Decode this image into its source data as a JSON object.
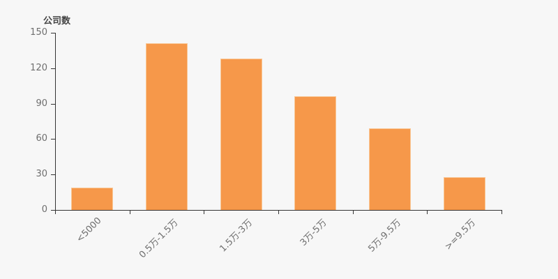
{
  "chart_data": {
    "type": "bar",
    "title": "公司数",
    "ylabel": "公司数",
    "xlabel": "",
    "categories": [
      "<5000",
      "0.5万-1.5万",
      "1.5万-3万",
      "3万-5万",
      "5万-9.5万",
      ">=9.5万"
    ],
    "values": [
      19,
      141,
      128,
      96,
      69,
      28
    ],
    "ylim": [
      0,
      150
    ],
    "yticks": [
      0,
      30,
      60,
      90,
      120,
      150
    ],
    "grid": false,
    "legend_position": "none",
    "colors": {
      "bar": "#f6984a",
      "bar_border": "#f9c795",
      "axis": "#333333",
      "tick_label": "#6e6e6e",
      "title": "#444444",
      "background": "#f7f7f7"
    }
  }
}
